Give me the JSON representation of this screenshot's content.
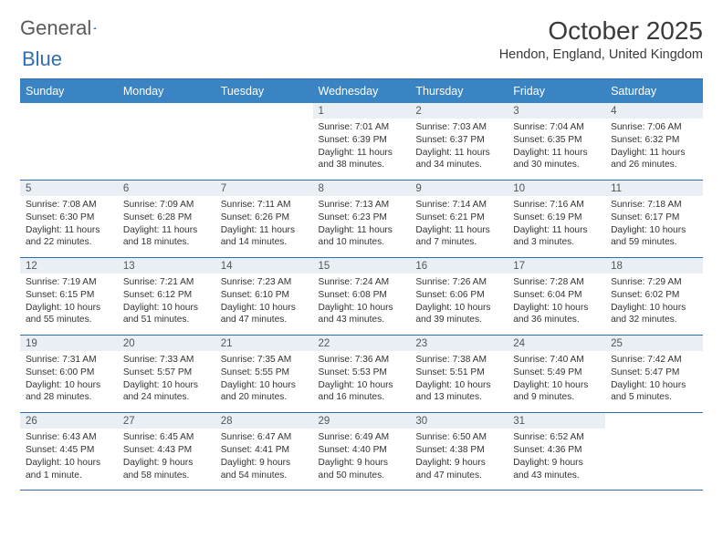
{
  "brand": {
    "word1": "General",
    "word2": "Blue"
  },
  "title": "October 2025",
  "location": "Hendon, England, United Kingdom",
  "day_headers": [
    "Sunday",
    "Monday",
    "Tuesday",
    "Wednesday",
    "Thursday",
    "Friday",
    "Saturday"
  ],
  "colors": {
    "header_bg": "#3b84c4",
    "header_fg": "#ffffff",
    "daynum_bg": "#e9eff4",
    "rule": "#2f6fb0",
    "logo_gray": "#5a5a5a",
    "logo_blue": "#2f6fb0"
  },
  "weeks": [
    {
      "nums": [
        "",
        "",
        "",
        "1",
        "2",
        "3",
        "4"
      ],
      "cells": [
        null,
        null,
        null,
        {
          "sunrise": "7:01 AM",
          "sunset": "6:39 PM",
          "daylight": "11 hours and 38 minutes."
        },
        {
          "sunrise": "7:03 AM",
          "sunset": "6:37 PM",
          "daylight": "11 hours and 34 minutes."
        },
        {
          "sunrise": "7:04 AM",
          "sunset": "6:35 PM",
          "daylight": "11 hours and 30 minutes."
        },
        {
          "sunrise": "7:06 AM",
          "sunset": "6:32 PM",
          "daylight": "11 hours and 26 minutes."
        }
      ]
    },
    {
      "nums": [
        "5",
        "6",
        "7",
        "8",
        "9",
        "10",
        "11"
      ],
      "cells": [
        {
          "sunrise": "7:08 AM",
          "sunset": "6:30 PM",
          "daylight": "11 hours and 22 minutes."
        },
        {
          "sunrise": "7:09 AM",
          "sunset": "6:28 PM",
          "daylight": "11 hours and 18 minutes."
        },
        {
          "sunrise": "7:11 AM",
          "sunset": "6:26 PM",
          "daylight": "11 hours and 14 minutes."
        },
        {
          "sunrise": "7:13 AM",
          "sunset": "6:23 PM",
          "daylight": "11 hours and 10 minutes."
        },
        {
          "sunrise": "7:14 AM",
          "sunset": "6:21 PM",
          "daylight": "11 hours and 7 minutes."
        },
        {
          "sunrise": "7:16 AM",
          "sunset": "6:19 PM",
          "daylight": "11 hours and 3 minutes."
        },
        {
          "sunrise": "7:18 AM",
          "sunset": "6:17 PM",
          "daylight": "10 hours and 59 minutes."
        }
      ]
    },
    {
      "nums": [
        "12",
        "13",
        "14",
        "15",
        "16",
        "17",
        "18"
      ],
      "cells": [
        {
          "sunrise": "7:19 AM",
          "sunset": "6:15 PM",
          "daylight": "10 hours and 55 minutes."
        },
        {
          "sunrise": "7:21 AM",
          "sunset": "6:12 PM",
          "daylight": "10 hours and 51 minutes."
        },
        {
          "sunrise": "7:23 AM",
          "sunset": "6:10 PM",
          "daylight": "10 hours and 47 minutes."
        },
        {
          "sunrise": "7:24 AM",
          "sunset": "6:08 PM",
          "daylight": "10 hours and 43 minutes."
        },
        {
          "sunrise": "7:26 AM",
          "sunset": "6:06 PM",
          "daylight": "10 hours and 39 minutes."
        },
        {
          "sunrise": "7:28 AM",
          "sunset": "6:04 PM",
          "daylight": "10 hours and 36 minutes."
        },
        {
          "sunrise": "7:29 AM",
          "sunset": "6:02 PM",
          "daylight": "10 hours and 32 minutes."
        }
      ]
    },
    {
      "nums": [
        "19",
        "20",
        "21",
        "22",
        "23",
        "24",
        "25"
      ],
      "cells": [
        {
          "sunrise": "7:31 AM",
          "sunset": "6:00 PM",
          "daylight": "10 hours and 28 minutes."
        },
        {
          "sunrise": "7:33 AM",
          "sunset": "5:57 PM",
          "daylight": "10 hours and 24 minutes."
        },
        {
          "sunrise": "7:35 AM",
          "sunset": "5:55 PM",
          "daylight": "10 hours and 20 minutes."
        },
        {
          "sunrise": "7:36 AM",
          "sunset": "5:53 PM",
          "daylight": "10 hours and 16 minutes."
        },
        {
          "sunrise": "7:38 AM",
          "sunset": "5:51 PM",
          "daylight": "10 hours and 13 minutes."
        },
        {
          "sunrise": "7:40 AM",
          "sunset": "5:49 PM",
          "daylight": "10 hours and 9 minutes."
        },
        {
          "sunrise": "7:42 AM",
          "sunset": "5:47 PM",
          "daylight": "10 hours and 5 minutes."
        }
      ]
    },
    {
      "nums": [
        "26",
        "27",
        "28",
        "29",
        "30",
        "31",
        ""
      ],
      "cells": [
        {
          "sunrise": "6:43 AM",
          "sunset": "4:45 PM",
          "daylight": "10 hours and 1 minute."
        },
        {
          "sunrise": "6:45 AM",
          "sunset": "4:43 PM",
          "daylight": "9 hours and 58 minutes."
        },
        {
          "sunrise": "6:47 AM",
          "sunset": "4:41 PM",
          "daylight": "9 hours and 54 minutes."
        },
        {
          "sunrise": "6:49 AM",
          "sunset": "4:40 PM",
          "daylight": "9 hours and 50 minutes."
        },
        {
          "sunrise": "6:50 AM",
          "sunset": "4:38 PM",
          "daylight": "9 hours and 47 minutes."
        },
        {
          "sunrise": "6:52 AM",
          "sunset": "4:36 PM",
          "daylight": "9 hours and 43 minutes."
        },
        null
      ]
    }
  ],
  "labels": {
    "sunrise": "Sunrise:",
    "sunset": "Sunset:",
    "daylight": "Daylight:"
  }
}
